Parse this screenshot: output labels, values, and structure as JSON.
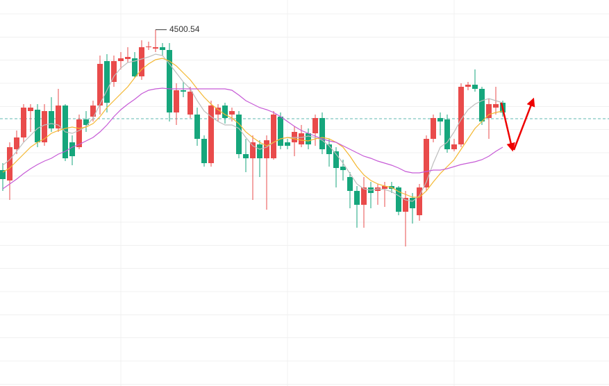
{
  "chart_data": {
    "type": "candlestick",
    "categories": [
      null,
      null,
      null,
      null,
      null,
      null,
      null,
      null,
      null,
      null,
      null,
      null,
      null,
      null,
      null,
      null,
      null,
      null,
      null,
      null,
      null,
      null,
      null,
      null,
      null,
      null,
      null,
      null,
      null,
      null,
      null,
      null,
      null,
      null,
      null,
      null,
      null,
      null,
      null,
      null,
      null,
      null,
      null,
      null,
      null,
      null,
      null,
      null,
      null,
      null,
      null,
      null,
      null,
      null,
      null,
      null,
      null,
      null,
      null,
      null,
      null,
      null,
      null,
      null,
      null,
      null,
      null,
      null,
      null,
      null,
      null,
      null,
      null
    ],
    "open": [
      4096,
      4066,
      4156,
      4190,
      4266,
      4270,
      4176,
      4266,
      4216,
      4282,
      4176,
      4162,
      4242,
      4250,
      4282,
      4410,
      4350,
      4410,
      4416,
      4418,
      4366,
      4450,
      4446,
      4450,
      4442,
      4262,
      4326,
      4256,
      4256,
      4186,
      4116,
      4256,
      4282,
      4256,
      4256,
      4142,
      4130,
      4170,
      4130,
      4130,
      4250,
      4176,
      4176,
      4170,
      4202,
      4202,
      4246,
      4170,
      4150,
      4106,
      4076,
      4036,
      3996,
      4046,
      4036,
      4042,
      4050,
      4046,
      3976,
      4016,
      3966,
      4046,
      4186,
      4246,
      4242,
      4156,
      4170,
      4336,
      4342,
      4330,
      4246,
      4276,
      4290
    ],
    "close": [
      4070,
      4162,
      4190,
      4276,
      4276,
      4176,
      4266,
      4216,
      4282,
      4130,
      4136,
      4242,
      4226,
      4282,
      4402,
      4290,
      4410,
      4418,
      4422,
      4366,
      4450,
      4452,
      4450,
      4442,
      4262,
      4326,
      4322,
      4322,
      4186,
      4116,
      4282,
      4276,
      4246,
      4266,
      4142,
      4130,
      4176,
      4130,
      4182,
      4256,
      4166,
      4166,
      4206,
      4202,
      4170,
      4246,
      4156,
      4142,
      4102,
      4096,
      4036,
      3996,
      4046,
      4030,
      4046,
      4050,
      4042,
      3976,
      4016,
      3986,
      4046,
      4186,
      4246,
      4236,
      4156,
      4170,
      4336,
      4342,
      4330,
      4236,
      4286,
      4286,
      4262
    ],
    "high": [
      4116,
      4176,
      4210,
      4286,
      4286,
      4286,
      4286,
      4306,
      4330,
      4286,
      4196,
      4256,
      4266,
      4296,
      4426,
      4430,
      4426,
      4436,
      4450,
      4436,
      4470,
      4466,
      4500.54,
      4462,
      4462,
      4346,
      4350,
      4336,
      4276,
      4196,
      4296,
      4286,
      4290,
      4276,
      4266,
      4186,
      4196,
      4182,
      4196,
      4266,
      4262,
      4186,
      4222,
      4226,
      4216,
      4256,
      4262,
      4186,
      4162,
      4126,
      4090,
      4050,
      4076,
      4062,
      4056,
      4062,
      4062,
      4050,
      4036,
      4030,
      4056,
      4196,
      4256,
      4262,
      4256,
      4186,
      4346,
      4350,
      4386,
      4336,
      4302,
      4336,
      4296
    ],
    "low": [
      4036,
      4010,
      4142,
      4176,
      4206,
      4162,
      4166,
      4206,
      4206,
      4122,
      4110,
      4156,
      4206,
      4236,
      4256,
      4262,
      4336,
      4386,
      4406,
      4362,
      4356,
      4442,
      4436,
      4426,
      4236,
      4226,
      4306,
      4246,
      4166,
      4106,
      4106,
      4236,
      4230,
      4236,
      4130,
      4090,
      4010,
      4076,
      3982,
      4126,
      4156,
      4156,
      4136,
      4162,
      4156,
      4166,
      4142,
      4106,
      4046,
      4066,
      3986,
      3930,
      3930,
      3986,
      3996,
      3990,
      4030,
      3966,
      3876,
      3942,
      3950,
      4036,
      4176,
      4196,
      4146,
      4150,
      4162,
      4326,
      4322,
      4226,
      4186,
      4256,
      4250
    ],
    "up_color": "#e94b4b",
    "down_color": "#16a67c",
    "series": [
      {
        "color": "#bdbdbd",
        "values": [
          4110,
          4126,
          4150,
          4176,
          4196,
          4216,
          4226,
          4230,
          4226,
          4206,
          4202,
          4210,
          4222,
          4246,
          4286,
          4326,
          4366,
          4390,
          4406,
          4410,
          4416,
          4422,
          4430,
          4426,
          4402,
          4376,
          4350,
          4330,
          4296,
          4266,
          4250,
          4236,
          4226,
          4226,
          4216,
          4190,
          4166,
          4156,
          4162,
          4176,
          4186,
          4190,
          4190,
          4190,
          4194,
          4190,
          4182,
          4166,
          4142,
          4116,
          4086,
          4056,
          4042,
          4038,
          4042,
          4040,
          4034,
          4022,
          4010,
          4006,
          4022,
          4062,
          4116,
          4162,
          4176,
          4206,
          4242,
          4270,
          4286,
          4296,
          4302,
          4296,
          4290
        ]
      },
      {
        "color": "#f4b731",
        "values": [
          4090,
          4102,
          4122,
          4142,
          4162,
          4176,
          4186,
          4202,
          4210,
          4216,
          4220,
          4216,
          4220,
          4230,
          4250,
          4276,
          4296,
          4316,
          4336,
          4362,
          4386,
          4402,
          4414,
          4418,
          4410,
          4396,
          4376,
          4356,
          4330,
          4306,
          4286,
          4270,
          4256,
          4246,
          4230,
          4206,
          4190,
          4176,
          4166,
          4176,
          4186,
          4190,
          4186,
          4182,
          4180,
          4186,
          4190,
          4186,
          4176,
          4162,
          4136,
          4106,
          4082,
          4066,
          4056,
          4050,
          4046,
          4034,
          4026,
          4018,
          4018,
          4036,
          4062,
          4086,
          4106,
          4126,
          4156,
          4186,
          4216,
          4236,
          4256,
          4262,
          4266
        ]
      },
      {
        "color": "#c65ad6",
        "values": [
          4042,
          4056,
          4070,
          4086,
          4100,
          4112,
          4122,
          4130,
          4142,
          4150,
          4162,
          4170,
          4180,
          4190,
          4206,
          4226,
          4250,
          4270,
          4286,
          4300,
          4316,
          4326,
          4330,
          4332,
          4330,
          4330,
          4330,
          4330,
          4330,
          4330,
          4330,
          4330,
          4330,
          4326,
          4312,
          4296,
          4286,
          4276,
          4270,
          4262,
          4250,
          4236,
          4222,
          4210,
          4202,
          4194,
          4186,
          4180,
          4176,
          4166,
          4156,
          4146,
          4136,
          4130,
          4122,
          4116,
          4110,
          4102,
          4092,
          4088,
          4088,
          4092,
          4096,
          4096,
          4100,
          4106,
          4112,
          4116,
          4120,
          4126,
          4136,
          4150,
          4162
        ]
      }
    ],
    "ylim": [
      3474,
      4586
    ],
    "grid_y": [
      4546,
      4479,
      4413,
      4346,
      4279,
      4213,
      4146,
      4079,
      4013,
      3946,
      3879,
      3813,
      3746,
      3679,
      3613,
      3546,
      3479
    ],
    "grid_x": [
      17,
      41,
      65
    ],
    "hline": 4244,
    "hline_color": "#5fb8b0"
  }
}
